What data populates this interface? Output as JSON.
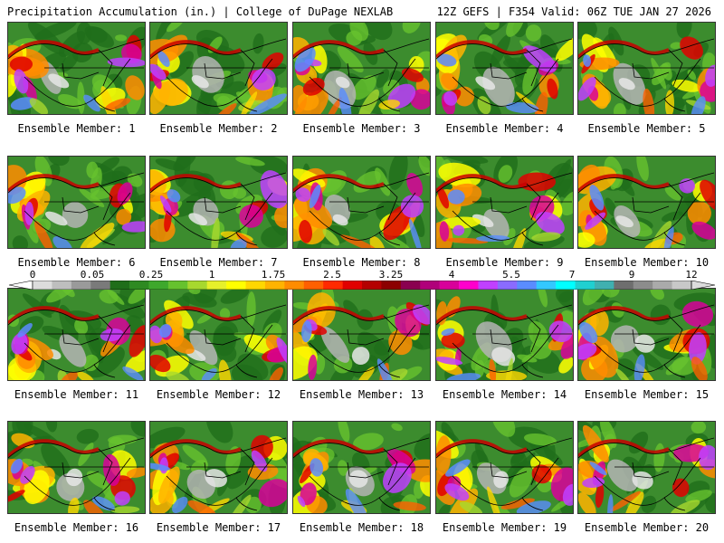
{
  "header": {
    "left": "Precipitation Accumulation (in.) | College of DuPage NEXLAB",
    "right": "12Z GEFS | F354 Valid: 06Z TUE JAN 27 2026"
  },
  "legend": {
    "ticks": [
      "0",
      "0.05",
      "0.25",
      "1",
      "1.75",
      "2.5",
      "3.25",
      "4",
      "5.5",
      "7",
      "9",
      "12"
    ],
    "colors": [
      "#dcdcdc",
      "#bebebe",
      "#9a9a9a",
      "#7a7a7a",
      "#1f6e1a",
      "#2e8a22",
      "#3ea82c",
      "#66c22e",
      "#a7d82e",
      "#e6f02a",
      "#ffff00",
      "#ffd700",
      "#ffb300",
      "#ff8c00",
      "#ff6000",
      "#ff2a00",
      "#e00000",
      "#b40000",
      "#8c0000",
      "#8a0050",
      "#b0007a",
      "#d8009a",
      "#ff00cc",
      "#c040ff",
      "#8a6bff",
      "#5a8cff",
      "#33c8ff",
      "#00ffff",
      "#20d0d0",
      "#40b0b0",
      "#6e6e6e",
      "#8c8c8c",
      "#aaaaaa",
      "#c8c8c8"
    ]
  },
  "members": [
    {
      "caption": "Ensemble Member: 1"
    },
    {
      "caption": "Ensemble Member: 2"
    },
    {
      "caption": "Ensemble Member: 3"
    },
    {
      "caption": "Ensemble Member: 4"
    },
    {
      "caption": "Ensemble Member: 5"
    },
    {
      "caption": "Ensemble Member: 6"
    },
    {
      "caption": "Ensemble Member: 7"
    },
    {
      "caption": "Ensemble Member: 8"
    },
    {
      "caption": "Ensemble Member: 9"
    },
    {
      "caption": "Ensemble Member: 10"
    },
    {
      "caption": "Ensemble Member: 11"
    },
    {
      "caption": "Ensemble Member: 12"
    },
    {
      "caption": "Ensemble Member: 13"
    },
    {
      "caption": "Ensemble Member: 14"
    },
    {
      "caption": "Ensemble Member: 15"
    },
    {
      "caption": "Ensemble Member: 16"
    },
    {
      "caption": "Ensemble Member: 17"
    },
    {
      "caption": "Ensemble Member: 18"
    },
    {
      "caption": "Ensemble Member: 19"
    },
    {
      "caption": "Ensemble Member: 20"
    }
  ]
}
